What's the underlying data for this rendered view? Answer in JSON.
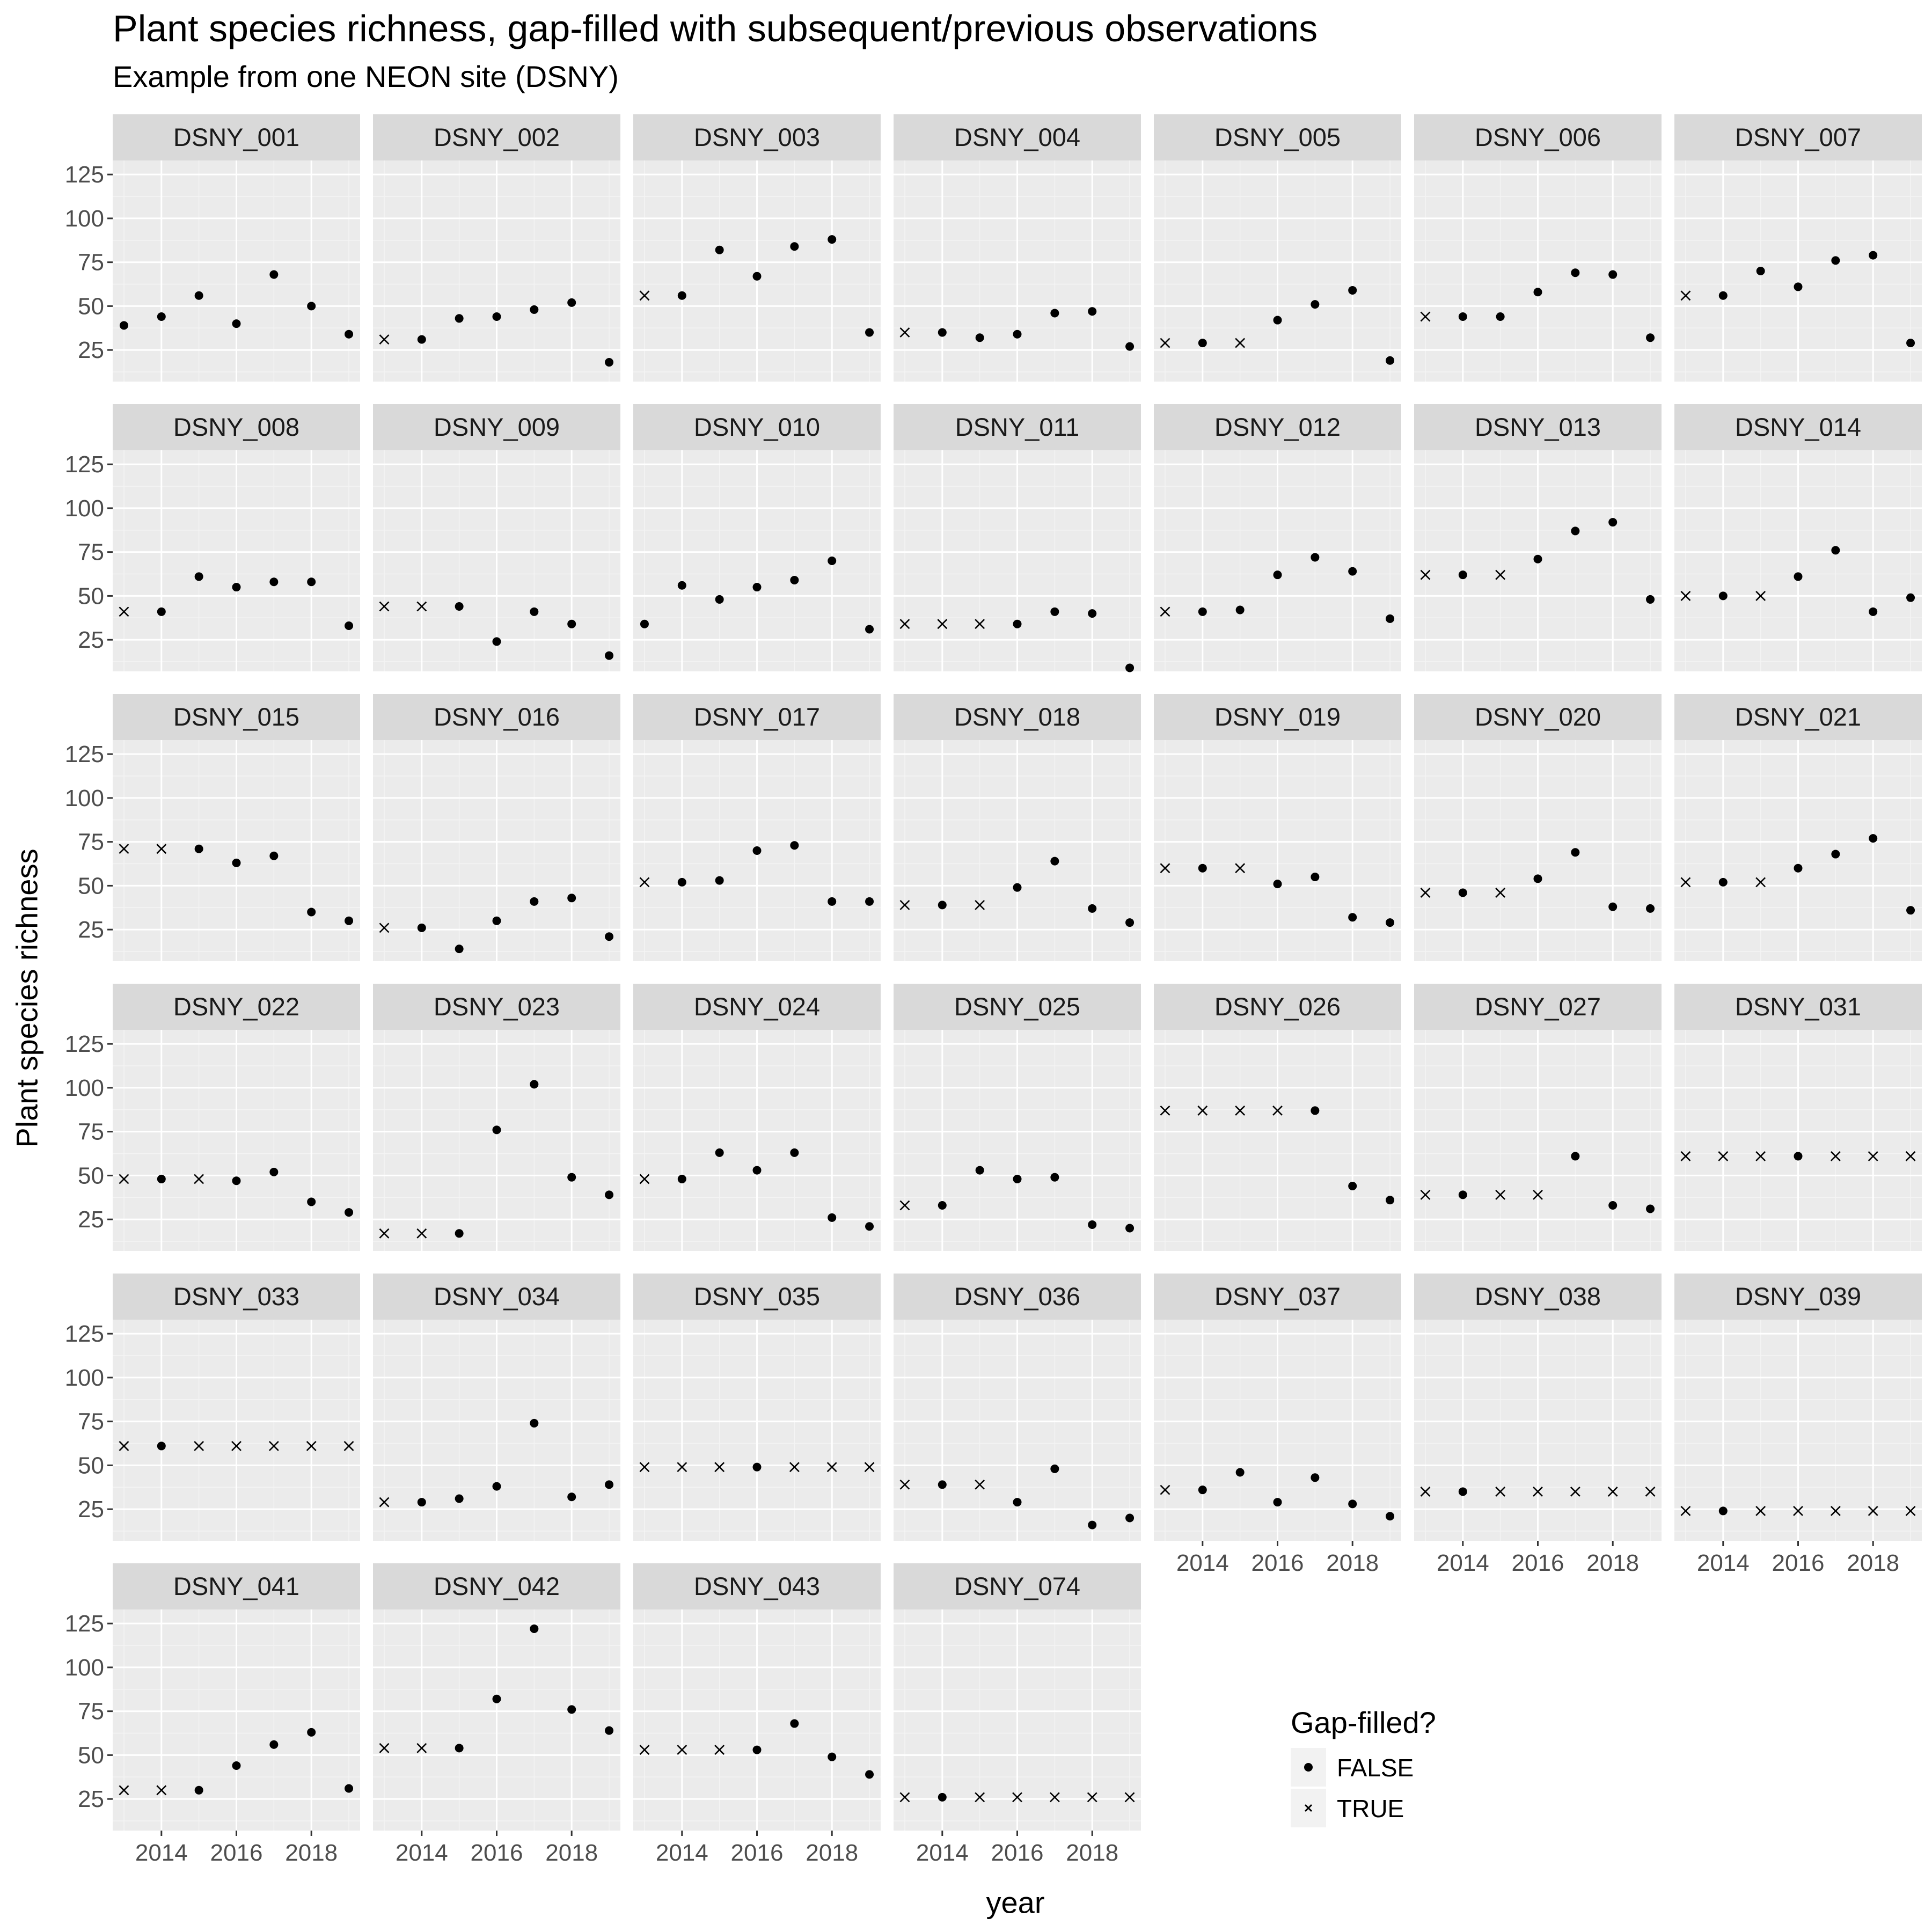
{
  "chart_data": {
    "type": "scatter",
    "title": "Plant species richness, gap-filled with subsequent/previous observations",
    "subtitle": "Example from one NEON site (DSNY)",
    "xlabel": "year",
    "ylabel": "Plant species richness",
    "x_ticks": [
      2014,
      2016,
      2018
    ],
    "y_ticks": [
      25,
      50,
      75,
      100,
      125
    ],
    "xlim": [
      2012.7,
      2019.3
    ],
    "ylim": [
      7,
      133
    ],
    "x": [
      2013,
      2014,
      2015,
      2016,
      2017,
      2018,
      2019
    ],
    "grid": true,
    "legend": {
      "title": "Gap-filled?",
      "placement": "bottom-right",
      "entries": [
        {
          "label": "FALSE",
          "shape": "dot"
        },
        {
          "label": "TRUE",
          "shape": "cross"
        }
      ]
    },
    "panels": [
      {
        "name": "DSNY_001",
        "values": [
          39,
          44,
          56,
          40,
          68,
          50,
          34
        ],
        "gap_filled": [
          false,
          false,
          false,
          false,
          false,
          false,
          false
        ]
      },
      {
        "name": "DSNY_002",
        "values": [
          31,
          31,
          43,
          44,
          48,
          52,
          18
        ],
        "gap_filled": [
          true,
          false,
          false,
          false,
          false,
          false,
          false
        ]
      },
      {
        "name": "DSNY_003",
        "values": [
          56,
          56,
          82,
          67,
          84,
          88,
          35
        ],
        "gap_filled": [
          true,
          false,
          false,
          false,
          false,
          false,
          false
        ]
      },
      {
        "name": "DSNY_004",
        "values": [
          35,
          35,
          32,
          34,
          46,
          47,
          27
        ],
        "gap_filled": [
          true,
          false,
          false,
          false,
          false,
          false,
          false
        ]
      },
      {
        "name": "DSNY_005",
        "values": [
          29,
          29,
          29,
          42,
          51,
          59,
          19
        ],
        "gap_filled": [
          true,
          false,
          true,
          false,
          false,
          false,
          false
        ]
      },
      {
        "name": "DSNY_006",
        "values": [
          44,
          44,
          44,
          58,
          69,
          68,
          32
        ],
        "gap_filled": [
          true,
          false,
          false,
          false,
          false,
          false,
          false
        ]
      },
      {
        "name": "DSNY_007",
        "values": [
          56,
          56,
          70,
          61,
          76,
          79,
          29
        ],
        "gap_filled": [
          true,
          false,
          false,
          false,
          false,
          false,
          false
        ]
      },
      {
        "name": "DSNY_008",
        "values": [
          41,
          41,
          61,
          55,
          58,
          58,
          33
        ],
        "gap_filled": [
          true,
          false,
          false,
          false,
          false,
          false,
          false
        ]
      },
      {
        "name": "DSNY_009",
        "values": [
          44,
          44,
          44,
          24,
          41,
          34,
          16
        ],
        "gap_filled": [
          true,
          true,
          false,
          false,
          false,
          false,
          false
        ]
      },
      {
        "name": "DSNY_010",
        "values": [
          34,
          56,
          48,
          55,
          59,
          70,
          31
        ],
        "gap_filled": [
          false,
          false,
          false,
          false,
          false,
          false,
          false
        ]
      },
      {
        "name": "DSNY_011",
        "values": [
          34,
          34,
          34,
          34,
          41,
          40,
          9
        ],
        "gap_filled": [
          true,
          true,
          true,
          false,
          false,
          false,
          false
        ]
      },
      {
        "name": "DSNY_012",
        "values": [
          41,
          41,
          42,
          62,
          72,
          64,
          37
        ],
        "gap_filled": [
          true,
          false,
          false,
          false,
          false,
          false,
          false
        ]
      },
      {
        "name": "DSNY_013",
        "values": [
          62,
          62,
          62,
          71,
          87,
          92,
          48
        ],
        "gap_filled": [
          true,
          false,
          true,
          false,
          false,
          false,
          false
        ]
      },
      {
        "name": "DSNY_014",
        "values": [
          50,
          50,
          50,
          61,
          76,
          41,
          49
        ],
        "gap_filled": [
          true,
          false,
          true,
          false,
          false,
          false,
          false
        ]
      },
      {
        "name": "DSNY_015",
        "values": [
          71,
          71,
          71,
          63,
          67,
          35,
          30
        ],
        "gap_filled": [
          true,
          true,
          false,
          false,
          false,
          false,
          false
        ]
      },
      {
        "name": "DSNY_016",
        "values": [
          26,
          26,
          14,
          30,
          41,
          43,
          21
        ],
        "gap_filled": [
          true,
          false,
          false,
          false,
          false,
          false,
          false
        ]
      },
      {
        "name": "DSNY_017",
        "values": [
          52,
          52,
          53,
          70,
          73,
          41,
          41
        ],
        "gap_filled": [
          true,
          false,
          false,
          false,
          false,
          false,
          false
        ]
      },
      {
        "name": "DSNY_018",
        "values": [
          39,
          39,
          39,
          49,
          64,
          37,
          29
        ],
        "gap_filled": [
          true,
          false,
          true,
          false,
          false,
          false,
          false
        ]
      },
      {
        "name": "DSNY_019",
        "values": [
          60,
          60,
          60,
          51,
          55,
          32,
          29
        ],
        "gap_filled": [
          true,
          false,
          true,
          false,
          false,
          false,
          false
        ]
      },
      {
        "name": "DSNY_020",
        "values": [
          46,
          46,
          46,
          54,
          69,
          38,
          37
        ],
        "gap_filled": [
          true,
          false,
          true,
          false,
          false,
          false,
          false
        ]
      },
      {
        "name": "DSNY_021",
        "values": [
          52,
          52,
          52,
          60,
          68,
          77,
          36
        ],
        "gap_filled": [
          true,
          false,
          true,
          false,
          false,
          false,
          false
        ]
      },
      {
        "name": "DSNY_022",
        "values": [
          48,
          48,
          48,
          47,
          52,
          35,
          29
        ],
        "gap_filled": [
          true,
          false,
          true,
          false,
          false,
          false,
          false
        ]
      },
      {
        "name": "DSNY_023",
        "values": [
          17,
          17,
          17,
          76,
          102,
          49,
          39
        ],
        "gap_filled": [
          true,
          true,
          false,
          false,
          false,
          false,
          false
        ]
      },
      {
        "name": "DSNY_024",
        "values": [
          48,
          48,
          63,
          53,
          63,
          26,
          21
        ],
        "gap_filled": [
          true,
          false,
          false,
          false,
          false,
          false,
          false
        ]
      },
      {
        "name": "DSNY_025",
        "values": [
          33,
          33,
          53,
          48,
          49,
          22,
          20
        ],
        "gap_filled": [
          true,
          false,
          false,
          false,
          false,
          false,
          false
        ]
      },
      {
        "name": "DSNY_026",
        "values": [
          87,
          87,
          87,
          87,
          87,
          44,
          36
        ],
        "gap_filled": [
          true,
          true,
          true,
          true,
          false,
          false,
          false
        ]
      },
      {
        "name": "DSNY_027",
        "values": [
          39,
          39,
          39,
          39,
          61,
          33,
          31
        ],
        "gap_filled": [
          true,
          false,
          true,
          true,
          false,
          false,
          false
        ]
      },
      {
        "name": "DSNY_031",
        "values": [
          61,
          61,
          61,
          61,
          61,
          61,
          61
        ],
        "gap_filled": [
          true,
          true,
          true,
          false,
          true,
          true,
          true
        ]
      },
      {
        "name": "DSNY_033",
        "values": [
          61,
          61,
          61,
          61,
          61,
          61,
          61
        ],
        "gap_filled": [
          true,
          false,
          true,
          true,
          true,
          true,
          true
        ]
      },
      {
        "name": "DSNY_034",
        "values": [
          29,
          29,
          31,
          38,
          74,
          32,
          39
        ],
        "gap_filled": [
          true,
          false,
          false,
          false,
          false,
          false,
          false
        ]
      },
      {
        "name": "DSNY_035",
        "values": [
          49,
          49,
          49,
          49,
          49,
          49,
          49
        ],
        "gap_filled": [
          true,
          true,
          true,
          false,
          true,
          true,
          true
        ]
      },
      {
        "name": "DSNY_036",
        "values": [
          39,
          39,
          39,
          29,
          48,
          16,
          20
        ],
        "gap_filled": [
          true,
          false,
          true,
          false,
          false,
          false,
          false
        ]
      },
      {
        "name": "DSNY_037",
        "values": [
          36,
          36,
          46,
          29,
          43,
          28,
          21
        ],
        "gap_filled": [
          true,
          false,
          false,
          false,
          false,
          false,
          false
        ]
      },
      {
        "name": "DSNY_038",
        "values": [
          35,
          35,
          35,
          35,
          35,
          35,
          35
        ],
        "gap_filled": [
          true,
          false,
          true,
          true,
          true,
          true,
          true
        ]
      },
      {
        "name": "DSNY_039",
        "values": [
          24,
          24,
          24,
          24,
          24,
          24,
          24
        ],
        "gap_filled": [
          true,
          false,
          true,
          true,
          true,
          true,
          true
        ]
      },
      {
        "name": "DSNY_041",
        "values": [
          30,
          30,
          30,
          44,
          56,
          63,
          31
        ],
        "gap_filled": [
          true,
          true,
          false,
          false,
          false,
          false,
          false
        ]
      },
      {
        "name": "DSNY_042",
        "values": [
          54,
          54,
          54,
          82,
          122,
          76,
          64
        ],
        "gap_filled": [
          true,
          true,
          false,
          false,
          false,
          false,
          false
        ]
      },
      {
        "name": "DSNY_043",
        "values": [
          53,
          53,
          53,
          53,
          68,
          49,
          39
        ],
        "gap_filled": [
          true,
          true,
          true,
          false,
          false,
          false,
          false
        ]
      },
      {
        "name": "DSNY_074",
        "values": [
          26,
          26,
          26,
          26,
          26,
          26,
          26
        ],
        "gap_filled": [
          true,
          false,
          true,
          true,
          true,
          true,
          true
        ]
      }
    ]
  }
}
